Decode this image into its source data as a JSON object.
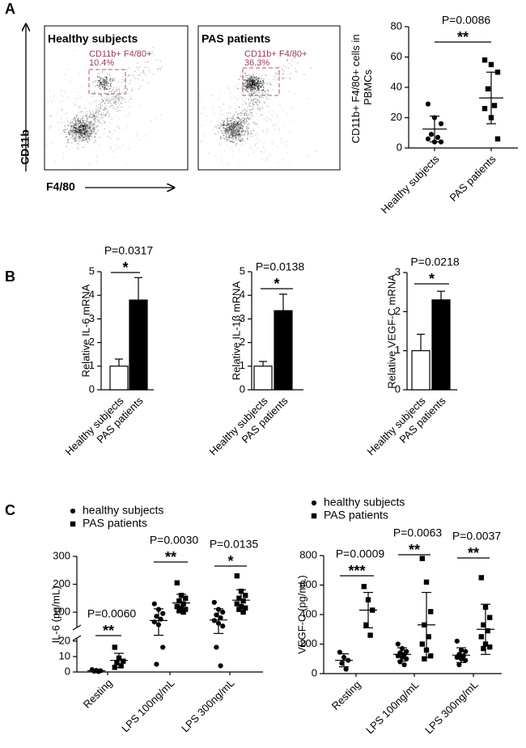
{
  "panel_labels": [
    "A",
    "B",
    "C"
  ],
  "flow_cytometry": {
    "y_axis_label": "CD11b",
    "x_axis_label": "F4/80",
    "plots": [
      {
        "title": "Healthy subjects",
        "gate_label": "CD11b+ F4/80+",
        "gate_percent": "10.4%"
      },
      {
        "title": "PAS patients",
        "gate_label": "CD11b+ F4/80+",
        "gate_percent": "36.3%"
      }
    ]
  },
  "chart_data": [
    {
      "type": "scatter",
      "y_label": "CD11b+ F4/80+ cells in PBMCs",
      "categories": [
        "Healthy subjects",
        "PAS patients"
      ],
      "markers": [
        "circle",
        "square"
      ],
      "color": "#000000",
      "values": [
        [
          29,
          20,
          16,
          9,
          7,
          6,
          4,
          4
        ],
        [
          58,
          55,
          50,
          39,
          28,
          26,
          20,
          6
        ]
      ],
      "means": [
        12.5,
        33
      ],
      "sds": [
        8.5,
        17
      ],
      "ylim": [
        0,
        80
      ],
      "yticks": [
        0,
        20,
        40,
        60,
        80
      ],
      "comparisons": [
        {
          "p_value": "P=0.0086",
          "significance": "**"
        }
      ]
    },
    {
      "type": "bar",
      "y_label": "Relative IL-6 mRNA",
      "categories": [
        "Healthy subjects",
        "PAS patients"
      ],
      "values": [
        1,
        3.8
      ],
      "errors": [
        0.3,
        0.95
      ],
      "colors": [
        "#ffffff",
        "#000000"
      ],
      "ylim": [
        0,
        5
      ],
      "yticks": [
        0,
        1,
        2,
        3,
        4,
        5
      ],
      "comparisons": [
        {
          "p_value": "P=0.0317",
          "significance": "*"
        }
      ]
    },
    {
      "type": "bar",
      "y_label": "Relative IL-1β mRNA",
      "categories": [
        "Healthy subjects",
        "PAS patients"
      ],
      "values": [
        1,
        3.35
      ],
      "errors": [
        0.2,
        0.7
      ],
      "colors": [
        "#ffffff",
        "#000000"
      ],
      "ylim": [
        0,
        5
      ],
      "yticks": [
        0,
        1,
        2,
        3,
        4,
        5
      ],
      "comparisons": [
        {
          "p_value": "P=0.0138",
          "significance": "*"
        }
      ]
    },
    {
      "type": "bar",
      "y_label": "Relative VEGF-C mRNA",
      "categories": [
        "Healthy subjects",
        "PAS patients"
      ],
      "values": [
        1,
        2.3
      ],
      "errors": [
        0.42,
        0.22
      ],
      "colors": [
        "#ffffff",
        "#000000"
      ],
      "ylim": [
        0,
        3
      ],
      "yticks": [
        0,
        1,
        2,
        3
      ],
      "comparisons": [
        {
          "p_value": "P=0.0218",
          "significance": "*"
        }
      ]
    },
    {
      "type": "scatter",
      "y_label": "IL-6 (pg/mL)",
      "categories": [
        "Resting",
        "LPS 100ng/mL",
        "LPS 300ng/mL"
      ],
      "series": [
        {
          "name": "healthy subjects",
          "marker": "circle",
          "color": "#000000",
          "values": [
            [
              1.5,
              1,
              0.8,
              0.5,
              0.3
            ],
            [
              130,
              110,
              95,
              85,
              75,
              65,
              55,
              16,
              5
            ],
            [
              135,
              110,
              100,
              90,
              80,
              70,
              60,
              50,
              16,
              4
            ]
          ],
          "means": [
            0.8,
            70,
            72
          ],
          "sds": [
            0.5,
            42,
            40
          ]
        },
        {
          "name": "PAS patients",
          "marker": "square",
          "color": "#000000",
          "values": [
            [
              16,
              9,
              7,
              6,
              4,
              3
            ],
            [
              205,
              160,
              150,
              140,
              130,
              120,
              115,
              110,
              105,
              100
            ],
            [
              230,
              175,
              160,
              150,
              140,
              130,
              120,
              115,
              110,
              100
            ]
          ],
          "means": [
            7.5,
            133,
            143
          ],
          "sds": [
            4.6,
            31,
            37
          ]
        }
      ],
      "y_segments": [
        {
          "ylim": [
            0,
            22
          ],
          "yticks": [
            0,
            10,
            20
          ]
        },
        {
          "ylim": [
            45,
            300
          ],
          "yticks": [
            100,
            200,
            300
          ]
        }
      ],
      "comparisons": [
        {
          "p_value": "P=0.0060",
          "significance": "**"
        },
        {
          "p_value": "P=0.0030",
          "significance": "**"
        },
        {
          "p_value": "P=0.0135",
          "significance": "*"
        }
      ]
    },
    {
      "type": "scatter",
      "y_label": "VEGF-C (pg/mL)",
      "categories": [
        "Resting",
        "LPS 100ng/mL",
        "LPS 300ng/mL"
      ],
      "series": [
        {
          "name": "healthy subjects",
          "marker": "circle",
          "color": "#000000",
          "values": [
            [
              145,
              110,
              90,
              70,
              30
            ],
            [
              200,
              170,
              150,
              140,
              130,
              120,
              110,
              100,
              80,
              60
            ],
            [
              220,
              160,
              150,
              130,
              120,
              110,
              100,
              90,
              60
            ]
          ],
          "means": [
            90,
            130,
            125
          ],
          "sds": [
            44,
            45,
            50
          ]
        },
        {
          "name": "PAS patients",
          "marker": "square",
          "color": "#000000",
          "values": [
            [
              590,
              500,
              430,
              330,
              260
            ],
            [
              780,
              620,
              420,
              330,
              250,
              200,
              160,
              120,
              100
            ],
            [
              650,
              450,
              380,
              330,
              290,
              250,
              200,
              180,
              170
            ]
          ],
          "means": [
            430,
            330,
            300
          ],
          "sds": [
            120,
            220,
            170
          ]
        }
      ],
      "ylim": [
        0,
        800
      ],
      "yticks": [
        0,
        200,
        400,
        600,
        800
      ],
      "comparisons": [
        {
          "p_value": "P=0.0009",
          "significance": "***"
        },
        {
          "p_value": "P=0.0063",
          "significance": "**"
        },
        {
          "p_value": "P=0.0037",
          "significance": "**"
        }
      ]
    }
  ]
}
